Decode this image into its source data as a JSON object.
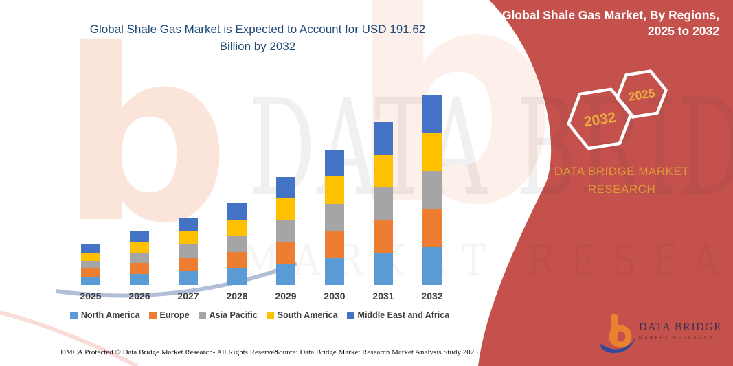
{
  "page": {
    "title": "Global Shale Gas Market is Expected to Account for USD 191.62 Billion by 2032",
    "footer_dmca": "DMCA Protected © Data Bridge Market Research-  All Rights Reserved.",
    "footer_source": "Source: Data Bridge Market Research  Market Analysis Study 2025"
  },
  "side_panel": {
    "title": "Global Shale Gas Market, By Regions, 2025 to 2032",
    "badge_back_label": "2032",
    "badge_front_label": "2025",
    "brand_text": "DATA BRIDGE MARKET RESEARCH",
    "background_color": "#C5514C",
    "gold_color": "#DC9B37"
  },
  "watermark": {
    "line1": "DATA BRIDGE",
    "line2": "MARKET RESEARCH",
    "logo_glyph": "b"
  },
  "logo": {
    "title": "DATA BRIDGE",
    "subtitle": "MARKET RESEARCH"
  },
  "chart_data": {
    "type": "bar",
    "stacked": true,
    "title": "Global Shale Gas Market is Expected to Account for USD 191.62 Billion by 2032",
    "xlabel": "",
    "ylabel": "",
    "value_unit": "USD Billion",
    "ylim": [
      0,
      200
    ],
    "grid": false,
    "legend_position": "bottom",
    "categories": [
      "2025",
      "2026",
      "2027",
      "2028",
      "2029",
      "2030",
      "2031",
      "2032"
    ],
    "series": [
      {
        "name": "North America",
        "color": "#5B9BD5",
        "values": [
          8.2,
          11.0,
          13.7,
          16.5,
          21.9,
          27.4,
          33.0,
          38.34
        ]
      },
      {
        "name": "Europe",
        "color": "#ED7D31",
        "values": [
          8.2,
          11.0,
          13.7,
          16.5,
          21.9,
          27.4,
          33.0,
          38.32
        ]
      },
      {
        "name": "Asia Pacific",
        "color": "#A5A5A5",
        "values": [
          8.2,
          11.0,
          13.7,
          16.5,
          21.9,
          27.4,
          33.0,
          38.32
        ]
      },
      {
        "name": "South America",
        "color": "#FFC000",
        "values": [
          8.2,
          11.0,
          13.7,
          16.5,
          21.9,
          27.4,
          33.0,
          38.32
        ]
      },
      {
        "name": "Middle East and Africa",
        "color": "#4472C4",
        "values": [
          8.2,
          11.0,
          13.7,
          16.5,
          21.9,
          27.4,
          33.0,
          38.32
        ]
      }
    ],
    "totals": [
      41.0,
      55.0,
      68.5,
      82.5,
      109.5,
      137.0,
      165.0,
      191.62
    ]
  }
}
